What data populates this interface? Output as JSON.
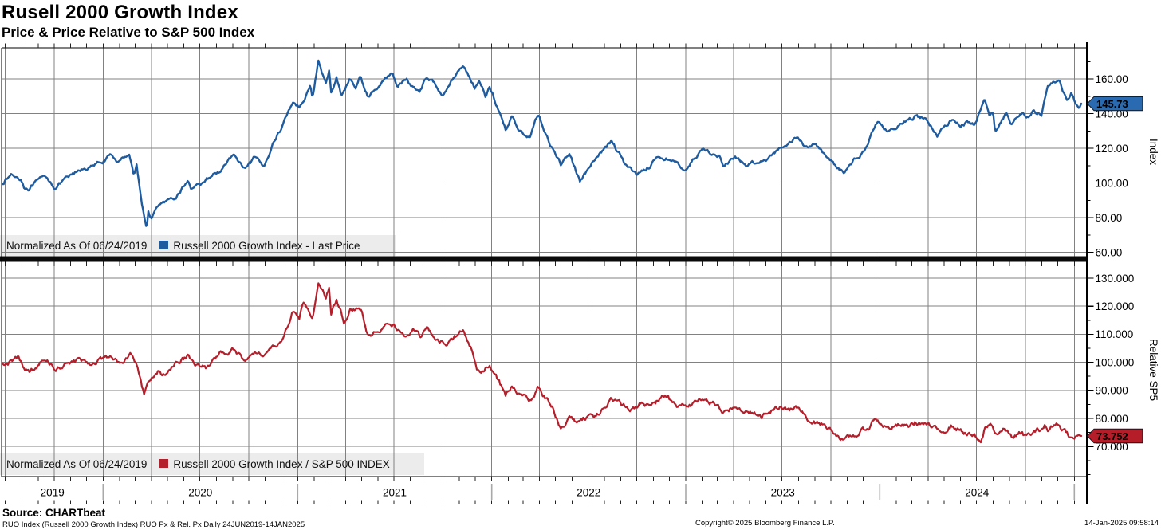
{
  "header": {
    "title": "Rusell 2000 Growth Index",
    "subtitle": "Price & Price Relative to S&P 500 Index"
  },
  "colors": {
    "grid": "#818181",
    "frame": "#000000",
    "legend_bg": "#ececec",
    "year_separator": "#a9a9a9",
    "blue": "#1f5c9f",
    "red": "#b41f2b"
  },
  "x_axis": {
    "start": "2019-06-24",
    "end": "2025-01-14",
    "years": [
      "2019",
      "2020",
      "2021",
      "2022",
      "2023",
      "2024"
    ]
  },
  "footer": {
    "source": "Source: CHARTbeat",
    "meta": "RUO Index (Russell 2000 Growth Index) RUO Px & Rel. Px  Daily 24JUN2019-14JAN2025",
    "copyright": "Copyright© 2025 Bloomberg Finance L.P.",
    "timestamp": "14-Jan-2025 09:58:14"
  },
  "chart_data": [
    {
      "type": "line",
      "panel": "top",
      "title_note": "Normalized As Of 06/24/2019",
      "legend_label": "Russell 2000 Growth Index - Last Price",
      "axis_title": "Index",
      "color": "#1f5c9f",
      "badge_color": "#2a6ab0",
      "last_price": 145.73,
      "last_price_label": "145.73",
      "y_axis": {
        "range_note": "approx 57.5 to 178",
        "ticks": [
          {
            "value": 160,
            "label": "160.00"
          },
          {
            "value": 140,
            "label": "140.00"
          },
          {
            "value": 120,
            "label": "120.00"
          },
          {
            "value": 100,
            "label": "100.00"
          },
          {
            "value": 80,
            "label": "80.00"
          },
          {
            "value": 60,
            "label": "60.00"
          }
        ],
        "minor": [
          170,
          150,
          130,
          110,
          90,
          70
        ]
      },
      "points": [
        [
          "2019-06-24",
          100
        ],
        [
          "2019-07-12",
          104.5
        ],
        [
          "2019-07-31",
          102.5
        ],
        [
          "2019-08-05",
          98
        ],
        [
          "2019-08-15",
          97
        ],
        [
          "2019-08-30",
          100.5
        ],
        [
          "2019-09-16",
          103.5
        ],
        [
          "2019-10-03",
          97.5
        ],
        [
          "2019-10-28",
          103
        ],
        [
          "2019-11-27",
          108.5
        ],
        [
          "2019-12-13",
          109.5
        ],
        [
          "2019-12-31",
          112.5
        ],
        [
          "2020-01-16",
          115.5
        ],
        [
          "2020-01-31",
          112
        ],
        [
          "2020-02-19",
          117.5
        ],
        [
          "2020-02-28",
          104.5
        ],
        [
          "2020-03-04",
          110.5
        ],
        [
          "2020-03-12",
          92
        ],
        [
          "2020-03-23",
          72.5
        ],
        [
          "2020-03-26",
          83
        ],
        [
          "2020-04-01",
          79.5
        ],
        [
          "2020-04-17",
          88
        ],
        [
          "2020-05-13",
          89.5
        ],
        [
          "2020-06-08",
          101.5
        ],
        [
          "2020-06-15",
          96
        ],
        [
          "2020-06-23",
          100
        ],
        [
          "2020-07-10",
          99
        ],
        [
          "2020-07-22",
          104
        ],
        [
          "2020-08-11",
          107.5
        ],
        [
          "2020-09-02",
          116.5
        ],
        [
          "2020-09-24",
          107
        ],
        [
          "2020-10-12",
          114
        ],
        [
          "2020-10-30",
          108.5
        ],
        [
          "2020-11-13",
          122
        ],
        [
          "2020-11-30",
          131
        ],
        [
          "2020-12-23",
          147
        ],
        [
          "2021-01-04",
          144
        ],
        [
          "2021-01-25",
          156
        ],
        [
          "2021-01-29",
          149
        ],
        [
          "2021-02-09",
          170.5
        ],
        [
          "2021-02-23",
          156
        ],
        [
          "2021-03-01",
          164
        ],
        [
          "2021-03-05",
          152
        ],
        [
          "2021-03-15",
          161
        ],
        [
          "2021-03-24",
          150.5
        ],
        [
          "2021-04-09",
          160
        ],
        [
          "2021-04-20",
          155
        ],
        [
          "2021-04-29",
          161
        ],
        [
          "2021-05-12",
          150.5
        ],
        [
          "2021-06-02",
          155
        ],
        [
          "2021-06-28",
          164
        ],
        [
          "2021-07-08",
          156
        ],
        [
          "2021-07-26",
          160
        ],
        [
          "2021-08-02",
          156
        ],
        [
          "2021-08-19",
          153.5
        ],
        [
          "2021-08-31",
          161
        ],
        [
          "2021-09-13",
          158
        ],
        [
          "2021-09-30",
          152
        ],
        [
          "2021-10-22",
          161
        ],
        [
          "2021-11-08",
          168
        ],
        [
          "2021-11-19",
          162
        ],
        [
          "2021-11-30",
          155
        ],
        [
          "2021-12-08",
          160
        ],
        [
          "2021-12-20",
          150
        ],
        [
          "2021-12-28",
          156
        ],
        [
          "2022-01-27",
          130.5
        ],
        [
          "2022-02-09",
          139
        ],
        [
          "2022-02-23",
          129.5
        ],
        [
          "2022-03-14",
          127
        ],
        [
          "2022-03-29",
          139.5
        ],
        [
          "2022-04-26",
          119
        ],
        [
          "2022-05-11",
          110.5
        ],
        [
          "2022-05-27",
          117.5
        ],
        [
          "2022-06-16",
          101
        ],
        [
          "2022-07-07",
          110
        ],
        [
          "2022-08-15",
          124.5
        ],
        [
          "2022-09-06",
          112.5
        ],
        [
          "2022-09-30",
          104.5
        ],
        [
          "2022-10-27",
          110.5
        ],
        [
          "2022-11-11",
          115.5
        ],
        [
          "2022-12-01",
          114
        ],
        [
          "2022-12-28",
          107.5
        ],
        [
          "2023-02-02",
          119.5
        ],
        [
          "2023-03-06",
          115.5
        ],
        [
          "2023-03-13",
          109.5
        ],
        [
          "2023-04-04",
          114
        ],
        [
          "2023-04-26",
          110.5
        ],
        [
          "2023-06-02",
          114
        ],
        [
          "2023-06-30",
          120.5
        ],
        [
          "2023-07-31",
          127
        ],
        [
          "2023-08-18",
          120
        ],
        [
          "2023-09-01",
          123.5
        ],
        [
          "2023-09-27",
          113.5
        ],
        [
          "2023-10-27",
          105.5
        ],
        [
          "2023-11-14",
          114
        ],
        [
          "2023-12-01",
          118
        ],
        [
          "2023-12-27",
          135.5
        ],
        [
          "2024-01-17",
          129.5
        ],
        [
          "2024-02-12",
          134
        ],
        [
          "2024-03-07",
          138
        ],
        [
          "2024-03-28",
          137
        ],
        [
          "2024-04-18",
          127.5
        ],
        [
          "2024-05-15",
          137
        ],
        [
          "2024-05-31",
          133
        ],
        [
          "2024-06-12",
          135
        ],
        [
          "2024-06-28",
          133
        ],
        [
          "2024-07-16",
          146.5
        ],
        [
          "2024-07-25",
          139
        ],
        [
          "2024-08-01",
          142
        ],
        [
          "2024-08-05",
          130
        ],
        [
          "2024-08-26",
          140
        ],
        [
          "2024-09-06",
          133.5
        ],
        [
          "2024-09-26",
          141
        ],
        [
          "2024-10-07",
          138.5
        ],
        [
          "2024-10-16",
          143
        ],
        [
          "2024-10-31",
          139.5
        ],
        [
          "2024-11-11",
          155
        ],
        [
          "2024-11-25",
          159
        ],
        [
          "2024-12-04",
          158
        ],
        [
          "2024-12-19",
          146
        ],
        [
          "2024-12-26",
          150.5
        ],
        [
          "2025-01-02",
          147
        ],
        [
          "2025-01-10",
          143.5
        ],
        [
          "2025-01-14",
          145.73
        ]
      ]
    },
    {
      "type": "line",
      "panel": "bottom",
      "title_note": "Normalized As Of 06/24/2019",
      "legend_label": "Russell 2000 Growth Index / S&P 500 INDEX",
      "axis_title": "Relative SP5",
      "color": "#b41f2b",
      "badge_color": "#b51d28",
      "last_price": 73.752,
      "last_price_label": "73.752",
      "y_axis": {
        "range_note": "approx 59.5 to 134.8",
        "ticks": [
          {
            "value": 130,
            "label": "130.000"
          },
          {
            "value": 120,
            "label": "120.000"
          },
          {
            "value": 110,
            "label": "110.000"
          },
          {
            "value": 100,
            "label": "100.000"
          },
          {
            "value": 90,
            "label": "90.000"
          },
          {
            "value": 80,
            "label": "80.000"
          },
          {
            "value": 70,
            "label": "70.000"
          }
        ],
        "minor": [
          125,
          115,
          105,
          95,
          85,
          75,
          65,
          60
        ]
      },
      "points": [
        [
          "2019-06-24",
          100
        ],
        [
          "2019-07-15",
          100.5
        ],
        [
          "2019-07-26",
          101.5
        ],
        [
          "2019-08-05",
          98
        ],
        [
          "2019-08-15",
          96.5
        ],
        [
          "2019-08-27",
          98.5
        ],
        [
          "2019-09-16",
          101
        ],
        [
          "2019-10-03",
          97.5
        ],
        [
          "2019-10-25",
          99.5
        ],
        [
          "2019-11-15",
          100.5
        ],
        [
          "2019-12-03",
          99.5
        ],
        [
          "2019-12-31",
          101.5
        ],
        [
          "2020-01-17",
          102.5
        ],
        [
          "2020-01-31",
          100.5
        ],
        [
          "2020-02-21",
          102.5
        ],
        [
          "2020-03-04",
          99
        ],
        [
          "2020-03-18",
          88.5
        ],
        [
          "2020-03-31",
          94.5
        ],
        [
          "2020-04-14",
          97
        ],
        [
          "2020-04-21",
          94.5
        ],
        [
          "2020-05-08",
          98
        ],
        [
          "2020-05-22",
          100
        ],
        [
          "2020-06-08",
          102
        ],
        [
          "2020-06-26",
          98.5
        ],
        [
          "2020-07-13",
          98
        ],
        [
          "2020-08-07",
          102.5
        ],
        [
          "2020-09-02",
          104.5
        ],
        [
          "2020-09-24",
          100.5
        ],
        [
          "2020-10-12",
          104
        ],
        [
          "2020-10-29",
          102
        ],
        [
          "2020-11-13",
          105.5
        ],
        [
          "2020-11-30",
          107.5
        ],
        [
          "2020-12-23",
          118.5
        ],
        [
          "2021-01-04",
          116
        ],
        [
          "2021-01-11",
          122
        ],
        [
          "2021-01-20",
          119
        ],
        [
          "2021-01-29",
          116
        ],
        [
          "2021-02-09",
          129
        ],
        [
          "2021-02-23",
          123
        ],
        [
          "2021-03-01",
          127
        ],
        [
          "2021-03-05",
          117.5
        ],
        [
          "2021-03-15",
          122.5
        ],
        [
          "2021-03-30",
          114
        ],
        [
          "2021-04-09",
          118.5
        ],
        [
          "2021-04-29",
          119
        ],
        [
          "2021-05-12",
          110.5
        ],
        [
          "2021-06-09",
          112
        ],
        [
          "2021-06-24",
          115
        ],
        [
          "2021-07-19",
          109.5
        ],
        [
          "2021-08-06",
          111.5
        ],
        [
          "2021-08-19",
          108.5
        ],
        [
          "2021-08-31",
          112
        ],
        [
          "2021-09-20",
          108
        ],
        [
          "2021-10-08",
          107
        ],
        [
          "2021-10-22",
          109
        ],
        [
          "2021-11-08",
          111
        ],
        [
          "2021-11-22",
          105
        ],
        [
          "2021-12-03",
          97.5
        ],
        [
          "2021-12-10",
          95.5
        ],
        [
          "2021-12-28",
          99.5
        ],
        [
          "2022-01-27",
          88.5
        ],
        [
          "2022-02-09",
          91.5
        ],
        [
          "2022-02-23",
          88
        ],
        [
          "2022-03-14",
          86
        ],
        [
          "2022-03-29",
          91.5
        ],
        [
          "2022-04-27",
          83.5
        ],
        [
          "2022-05-11",
          76
        ],
        [
          "2022-05-31",
          80.5
        ],
        [
          "2022-06-16",
          78
        ],
        [
          "2022-06-30",
          80.5
        ],
        [
          "2022-07-15",
          80
        ],
        [
          "2022-08-15",
          86.5
        ],
        [
          "2022-09-06",
          84.5
        ],
        [
          "2022-09-26",
          83
        ],
        [
          "2022-10-12",
          86
        ],
        [
          "2022-10-21",
          84.5
        ],
        [
          "2022-11-04",
          85.5
        ],
        [
          "2022-11-23",
          88.5
        ],
        [
          "2022-12-16",
          84.5
        ],
        [
          "2023-01-09",
          85
        ],
        [
          "2023-02-02",
          87
        ],
        [
          "2023-02-24",
          85
        ],
        [
          "2023-03-13",
          82
        ],
        [
          "2023-04-04",
          84
        ],
        [
          "2023-04-26",
          82.5
        ],
        [
          "2023-05-24",
          81
        ],
        [
          "2023-06-07",
          83.5
        ],
        [
          "2023-06-30",
          84
        ],
        [
          "2023-07-14",
          82.5
        ],
        [
          "2023-07-28",
          83.5
        ],
        [
          "2023-08-21",
          79.5
        ],
        [
          "2023-09-14",
          78
        ],
        [
          "2023-10-06",
          75.5
        ],
        [
          "2023-10-27",
          72
        ],
        [
          "2023-11-10",
          73.5
        ],
        [
          "2023-11-22",
          74.5
        ],
        [
          "2023-12-13",
          77
        ],
        [
          "2023-12-22",
          80
        ],
        [
          "2024-01-17",
          76.5
        ],
        [
          "2024-02-07",
          77.5
        ],
        [
          "2024-02-23",
          77
        ],
        [
          "2024-03-07",
          78.5
        ],
        [
          "2024-03-27",
          78
        ],
        [
          "2024-04-18",
          75.5
        ],
        [
          "2024-05-03",
          76
        ],
        [
          "2024-05-14",
          77.5
        ],
        [
          "2024-05-31",
          76
        ],
        [
          "2024-06-14",
          74.5
        ],
        [
          "2024-06-28",
          73.5
        ],
        [
          "2024-07-09",
          70.5
        ],
        [
          "2024-07-17",
          76.5
        ],
        [
          "2024-07-29",
          78
        ],
        [
          "2024-08-07",
          74.5
        ],
        [
          "2024-08-23",
          76
        ],
        [
          "2024-09-05",
          73.5
        ],
        [
          "2024-09-19",
          74.5
        ],
        [
          "2024-10-03",
          73.5
        ],
        [
          "2024-10-29",
          76
        ],
        [
          "2024-11-06",
          77.5
        ],
        [
          "2024-11-12",
          75.5
        ],
        [
          "2024-11-27",
          78.5
        ],
        [
          "2024-12-16",
          75.5
        ],
        [
          "2024-12-30",
          72.5
        ],
        [
          "2025-01-08",
          74
        ],
        [
          "2025-01-14",
          73.752
        ]
      ]
    }
  ]
}
